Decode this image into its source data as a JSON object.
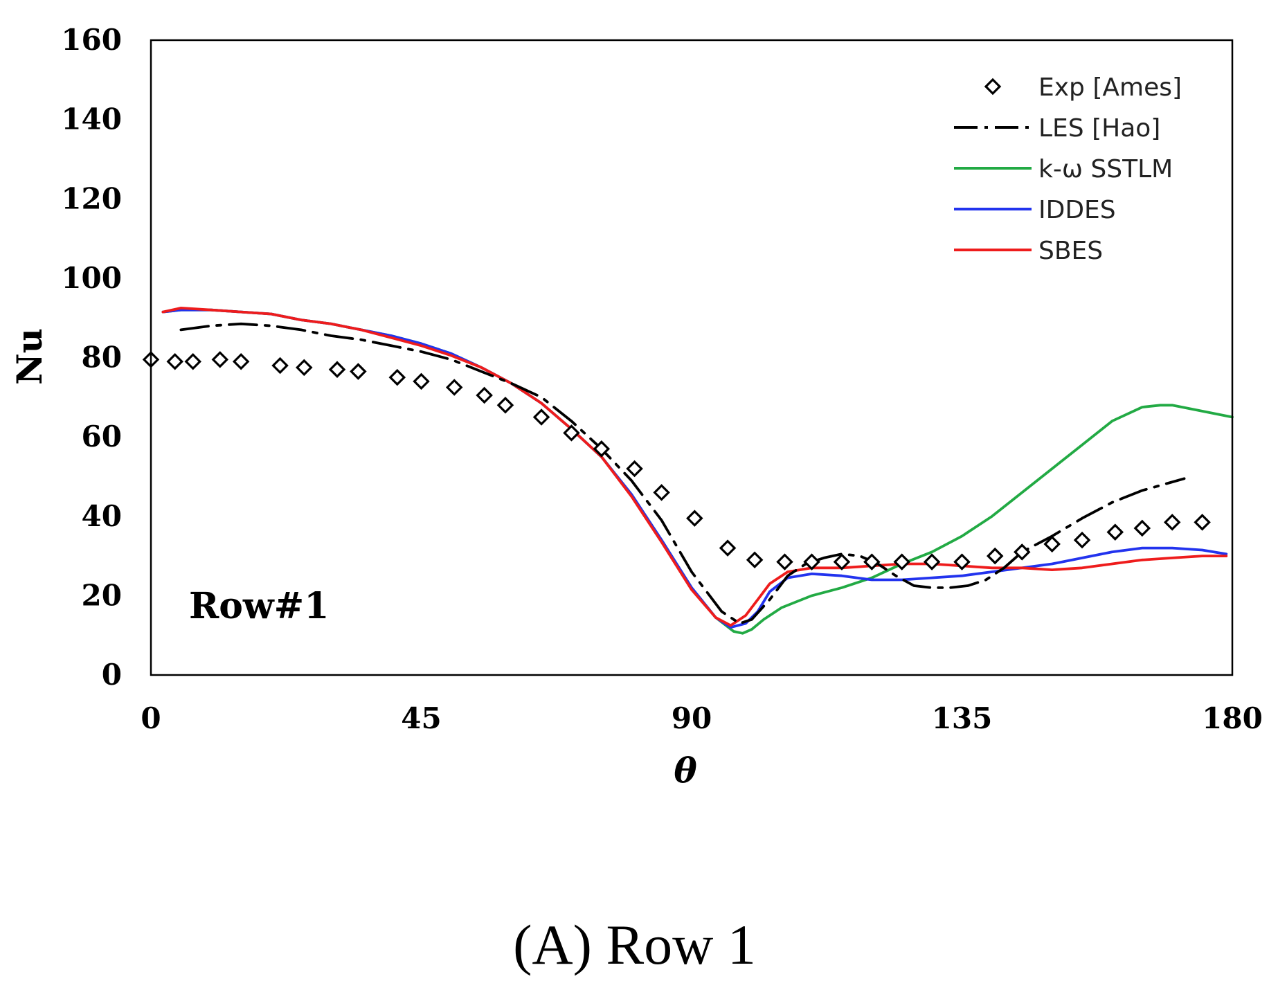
{
  "caption": "(A) Row 1",
  "chart_data": {
    "type": "line",
    "title": "",
    "xlabel": "θ",
    "ylabel": "Nu",
    "xlim": [
      0,
      180
    ],
    "ylim": [
      0,
      160
    ],
    "xticks": [
      0,
      45,
      90,
      135,
      180
    ],
    "yticks": [
      0,
      20,
      40,
      60,
      80,
      100,
      120,
      140,
      160
    ],
    "annotation": "Row#1",
    "legend_position": "top-right",
    "series": [
      {
        "name": "Exp [Ames]",
        "style": "markers",
        "marker": "diamond",
        "color": "#000000",
        "x": [
          0,
          4,
          7,
          11.5,
          15,
          21.5,
          25.5,
          31,
          34.5,
          41,
          45,
          50.5,
          55.5,
          59,
          65,
          70,
          75,
          80.5,
          85,
          90.5,
          96,
          100.5,
          105.5,
          110,
          115,
          120,
          125,
          130,
          135,
          140.5,
          145,
          150,
          155,
          160.5,
          165,
          170,
          175
        ],
        "y": [
          79.5,
          79,
          79,
          79.5,
          79,
          78,
          77.5,
          77,
          76.5,
          75,
          74,
          72.5,
          70.5,
          68,
          65,
          61,
          57,
          52,
          46,
          39.5,
          32,
          29,
          28.5,
          28.5,
          28.5,
          28.5,
          28.5,
          28.5,
          28.5,
          30,
          31,
          33,
          34,
          36,
          37,
          38.5,
          38.5
        ]
      },
      {
        "name": "LES [Hao]",
        "style": "dashdot",
        "color": "#000000",
        "x": [
          5,
          10,
          15,
          20,
          25,
          30,
          35,
          40,
          45,
          50,
          55,
          60,
          65,
          70,
          75,
          80,
          85,
          90,
          95,
          98,
          100,
          103,
          106,
          109,
          112,
          115,
          118,
          121,
          124,
          127,
          130,
          133,
          136,
          139,
          142,
          145,
          150,
          155,
          160,
          165,
          172
        ],
        "y": [
          87,
          88,
          88.5,
          88,
          87,
          85.5,
          84.5,
          83,
          81.5,
          79.5,
          76.5,
          73.5,
          70,
          64,
          57,
          49,
          39,
          26,
          16,
          13,
          14,
          19,
          25,
          28,
          29.5,
          30.5,
          30,
          28,
          25,
          22.5,
          22,
          22,
          22.5,
          24,
          27,
          31,
          35,
          39.5,
          43.5,
          46.5,
          49.5
        ]
      },
      {
        "name": "k-ω SSTLM",
        "style": "solid",
        "color": "#22aa44",
        "x": [
          2,
          5,
          10,
          15,
          20,
          25,
          30,
          35,
          40,
          45,
          50,
          55,
          60,
          65,
          70,
          75,
          80,
          85,
          90,
          94,
          97,
          98.5,
          100,
          102,
          105,
          110,
          115,
          120,
          125,
          130,
          135,
          140,
          145,
          150,
          155,
          160,
          165,
          168,
          170,
          175,
          180
        ],
        "y": [
          91.5,
          92,
          92,
          91.5,
          91,
          89.5,
          88.5,
          87,
          85.5,
          83.5,
          81,
          77.5,
          73.5,
          68.5,
          62,
          55,
          45.5,
          34,
          22,
          14.5,
          11,
          10.5,
          11.5,
          14,
          17,
          20,
          22,
          24.5,
          28,
          31,
          35,
          40,
          46,
          52,
          58,
          64,
          67.5,
          68,
          68,
          66.5,
          65
        ]
      },
      {
        "name": "IDDES",
        "style": "solid",
        "color": "#2233ee",
        "x": [
          2,
          5,
          10,
          15,
          20,
          25,
          30,
          35,
          40,
          45,
          50,
          55,
          60,
          65,
          70,
          75,
          80,
          85,
          90,
          94,
          96.5,
          99,
          101,
          103,
          106,
          110,
          115,
          120,
          125,
          130,
          135,
          140,
          145,
          150,
          155,
          160,
          165,
          170,
          175,
          179
        ],
        "y": [
          91.5,
          92,
          92,
          91.5,
          91,
          89.5,
          88.5,
          87,
          85.5,
          83.5,
          81,
          77.5,
          73.5,
          68.5,
          62,
          55,
          45.5,
          34,
          22,
          14.5,
          12,
          13,
          16,
          21,
          24.5,
          25.5,
          25,
          24,
          24,
          24.5,
          25,
          26,
          27,
          28,
          29.5,
          31,
          32,
          32,
          31.5,
          30.5
        ]
      },
      {
        "name": "SBES",
        "style": "solid",
        "color": "#ee1c1c",
        "x": [
          2,
          5,
          10,
          15,
          20,
          25,
          30,
          35,
          40,
          45,
          50,
          55,
          60,
          65,
          70,
          75,
          80,
          85,
          90,
          94,
          96.5,
          99,
          101,
          103,
          106,
          110,
          115,
          120,
          125,
          130,
          135,
          140,
          145,
          150,
          155,
          160,
          165,
          170,
          175,
          179
        ],
        "y": [
          91.5,
          92.5,
          92,
          91.5,
          91,
          89.5,
          88.5,
          87,
          85,
          83,
          80.5,
          77.5,
          73.5,
          68.5,
          62,
          55,
          45,
          33.5,
          21.5,
          14.5,
          12.5,
          15,
          19,
          23,
          26,
          27,
          27,
          27.5,
          28,
          28,
          27.5,
          27,
          27,
          26.5,
          27,
          28,
          29,
          29.5,
          30,
          30
        ]
      }
    ]
  }
}
